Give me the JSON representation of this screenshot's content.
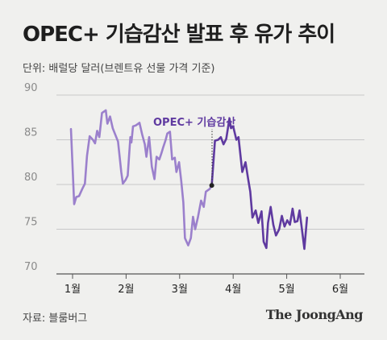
{
  "title": "OPEC+ 기습감산 발표 후 유가 추이",
  "unit_label": "단위: 배럴당 달러(브렌트유 선물 가격 기준)",
  "source": "자료: 블룸버그",
  "brand": "The JoongAng",
  "colors": {
    "before": "#9b80cc",
    "after": "#5f3aa0",
    "grid": "#c8c8c8",
    "background": "#f0f0ee"
  },
  "chart_data": {
    "type": "line",
    "title": "OPEC+ 기습감산 발표 후 유가 추이",
    "ylabel": "단위: 배럴당 달러(브렌트유 선물 가격 기준)",
    "ylim": [
      70,
      90
    ],
    "yticks": [
      70,
      75,
      80,
      85,
      90
    ],
    "xlim": [
      1,
      6.3
    ],
    "xticks": [
      {
        "value": 1,
        "label": "1월"
      },
      {
        "value": 2,
        "label": "2월"
      },
      {
        "value": 3,
        "label": "3월"
      },
      {
        "value": 4,
        "label": "4월"
      },
      {
        "value": 5,
        "label": "5월"
      },
      {
        "value": 6,
        "label": "6월"
      }
    ],
    "grid": true,
    "annotation": {
      "label": "OPEC+ 기습감산",
      "x": 3.96,
      "y": 79.9
    },
    "series": [
      {
        "segment": "before",
        "points": [
          [
            0.97,
            86.2
          ],
          [
            1.03,
            77.8
          ],
          [
            1.07,
            78.6
          ],
          [
            1.12,
            78.7
          ],
          [
            1.18,
            79.5
          ],
          [
            1.23,
            80.1
          ],
          [
            1.27,
            83.2
          ],
          [
            1.32,
            85.4
          ],
          [
            1.38,
            85.0
          ],
          [
            1.42,
            84.6
          ],
          [
            1.46,
            86.0
          ],
          [
            1.5,
            85.3
          ],
          [
            1.55,
            88.0
          ],
          [
            1.62,
            88.3
          ],
          [
            1.65,
            86.8
          ],
          [
            1.7,
            87.6
          ],
          [
            1.75,
            86.3
          ],
          [
            1.85,
            84.8
          ],
          [
            1.91,
            81.4
          ],
          [
            1.94,
            80.1
          ],
          [
            1.99,
            80.5
          ],
          [
            2.03,
            81.0
          ],
          [
            2.08,
            85.3
          ],
          [
            2.1,
            84.7
          ],
          [
            2.13,
            86.5
          ],
          [
            2.18,
            86.6
          ],
          [
            2.25,
            86.9
          ],
          [
            2.3,
            85.6
          ],
          [
            2.35,
            84.5
          ],
          [
            2.38,
            83.1
          ],
          [
            2.43,
            85.3
          ],
          [
            2.48,
            82.0
          ],
          [
            2.53,
            80.6
          ],
          [
            2.57,
            83.1
          ],
          [
            2.62,
            82.8
          ],
          [
            2.66,
            83.5
          ],
          [
            2.69,
            84.1
          ],
          [
            2.74,
            85.0
          ],
          [
            2.77,
            85.7
          ],
          [
            2.82,
            85.9
          ],
          [
            2.86,
            82.8
          ],
          [
            2.91,
            83.0
          ],
          [
            2.94,
            81.4
          ],
          [
            2.99,
            82.5
          ],
          [
            3.03,
            80.4
          ],
          [
            3.07,
            78.0
          ],
          [
            3.1,
            74.0
          ],
          [
            3.13,
            73.6
          ],
          [
            3.16,
            73.2
          ],
          [
            3.21,
            74.0
          ],
          [
            3.25,
            76.4
          ],
          [
            3.29,
            75.0
          ],
          [
            3.34,
            76.3
          ],
          [
            3.4,
            78.2
          ],
          [
            3.45,
            77.5
          ],
          [
            3.49,
            79.2
          ],
          [
            3.56,
            79.5
          ],
          [
            3.6,
            79.9
          ]
        ]
      },
      {
        "segment": "after",
        "points": [
          [
            3.6,
            79.9
          ],
          [
            3.66,
            84.9
          ],
          [
            3.72,
            85.0
          ],
          [
            3.77,
            85.3
          ],
          [
            3.82,
            84.5
          ],
          [
            3.87,
            85.1
          ],
          [
            3.93,
            87.4
          ],
          [
            3.96,
            86.3
          ],
          [
            4.0,
            86.5
          ],
          [
            4.06,
            85.0
          ],
          [
            4.1,
            85.3
          ],
          [
            4.17,
            81.4
          ],
          [
            4.23,
            82.5
          ],
          [
            4.28,
            80.6
          ],
          [
            4.32,
            79.2
          ],
          [
            4.36,
            76.3
          ],
          [
            4.42,
            77.1
          ],
          [
            4.47,
            75.7
          ],
          [
            4.53,
            77.0
          ],
          [
            4.57,
            73.6
          ],
          [
            4.62,
            72.9
          ],
          [
            4.65,
            75.7
          ],
          [
            4.7,
            77.5
          ],
          [
            4.75,
            75.5
          ],
          [
            4.8,
            74.3
          ],
          [
            4.86,
            75.0
          ],
          [
            4.91,
            76.5
          ],
          [
            4.96,
            75.3
          ],
          [
            5.01,
            76.0
          ],
          [
            5.06,
            75.5
          ],
          [
            5.11,
            77.3
          ],
          [
            5.15,
            75.8
          ],
          [
            5.2,
            75.9
          ],
          [
            5.24,
            77.1
          ],
          [
            5.28,
            75.2
          ],
          [
            5.33,
            72.8
          ],
          [
            5.38,
            76.3
          ]
        ]
      }
    ]
  }
}
